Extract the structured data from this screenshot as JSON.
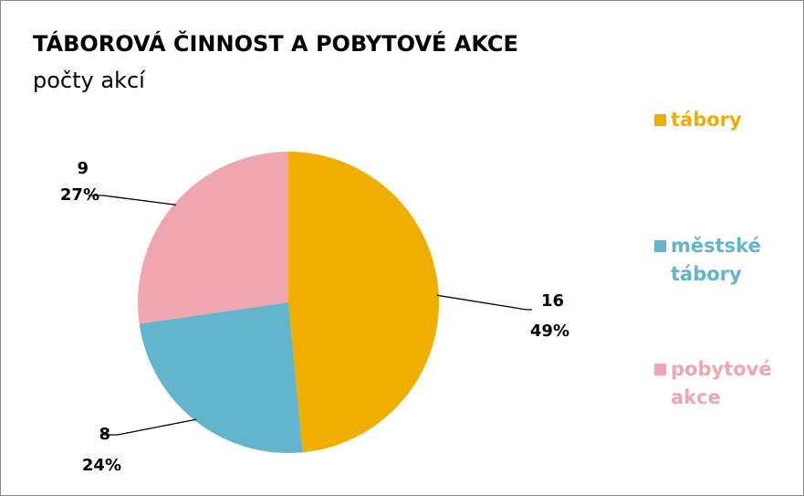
{
  "chart_data": {
    "type": "pie",
    "title": "TÁBOROVÁ ČINNOST A POBYTOVÉ AKCE",
    "subtitle": "počty akcí",
    "slices": [
      {
        "label": "tábory",
        "value": 16,
        "percent": "49%",
        "color": "#F0AE00"
      },
      {
        "label": "městské tábory",
        "value": 8,
        "percent": "24%",
        "color": "#62B5CC"
      },
      {
        "label": "pobytové akce",
        "value": 9,
        "percent": "27%",
        "color": "#EFA6B1"
      }
    ],
    "legend_position": "right"
  }
}
